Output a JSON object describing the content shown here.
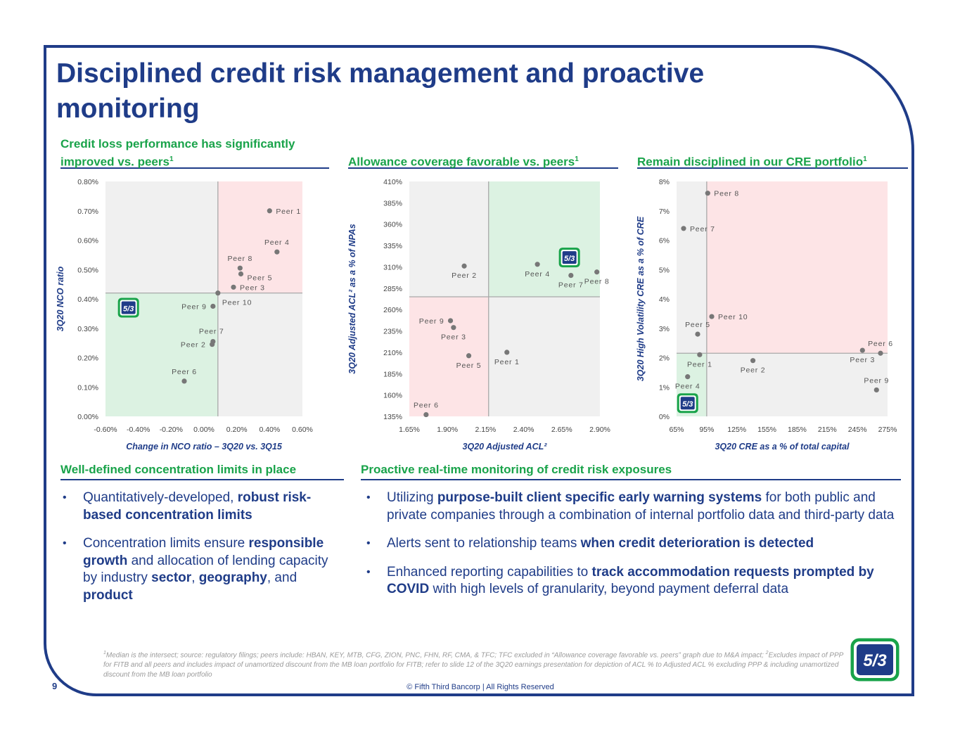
{
  "title": "Disciplined credit risk management and proactive monitoring",
  "sections": {
    "credit_loss": {
      "heading": "Credit loss performance has significantly improved vs. peers",
      "sup": "1"
    },
    "allowance": {
      "heading": "Allowance coverage favorable vs. peers",
      "sup": "1"
    },
    "cre": {
      "heading": "Remain disciplined in our CRE portfolio",
      "sup": "1"
    },
    "limits": {
      "heading": "Well-defined concentration limits in place"
    },
    "monitoring": {
      "heading": "Proactive real-time monitoring of credit risk exposures"
    }
  },
  "limits_bullets": [
    {
      "parts": [
        {
          "t": "Quantitatively-developed, "
        },
        {
          "t": "robust risk-based concentration limits",
          "b": true
        }
      ]
    },
    {
      "parts": [
        {
          "t": "Concentration limits ensure "
        },
        {
          "t": "responsible growth",
          "b": true
        },
        {
          "t": " and allocation of lending capacity by industry "
        },
        {
          "t": "sector",
          "b": true
        },
        {
          "t": ", "
        },
        {
          "t": "geography",
          "b": true
        },
        {
          "t": ", and "
        },
        {
          "t": "product",
          "b": true
        }
      ]
    }
  ],
  "monitoring_bullets": [
    {
      "parts": [
        {
          "t": "Utilizing "
        },
        {
          "t": "purpose-built client specific early warning systems",
          "b": true
        },
        {
          "t": " for both public and private companies through a combination of internal portfolio data and third-party data"
        }
      ]
    },
    {
      "parts": [
        {
          "t": "Alerts sent to relationship teams "
        },
        {
          "t": "when credit deterioration is detected",
          "b": true
        }
      ]
    },
    {
      "parts": [
        {
          "t": "Enhanced reporting capabilities to "
        },
        {
          "t": "track accommodation requests prompted by COVID",
          "b": true
        },
        {
          "t": " with high levels of granularity, beyond payment deferral data"
        }
      ]
    }
  ],
  "footnote_sup1": "1",
  "footnote_a": "Median is the intersect; source: regulatory filings; peers include: HBAN, KEY, MTB, CFG, ZION, PNC, FHN, RF, CMA, & TFC; TFC excluded in “Allowance coverage favorable vs. peers” graph due to M&A impact; ",
  "footnote_sup2": "2",
  "footnote_b": "Excludes impact of PPP for FITB and all peers and includes impact of unamortized discount from the MB loan portfolio for FITB; refer to slide 12 of the 3Q20 earnings presentation for depiction of ACL % to Adjusted ACL % excluding PPP & including unamortized discount from the MB loan portfolio",
  "page_number": "9",
  "copyright": "© Fifth Third Bancorp | All Rights Reserved",
  "logo_text": "5/3",
  "colors": {
    "navy": "#1f3c88",
    "green": "#19a34a",
    "pink_quadrant": "#fde4e6",
    "green_quadrant": "#dcf2e2",
    "gray_quadrant": "#f0f0f0",
    "point": "#777777"
  },
  "chart_data": [
    {
      "type": "scatter",
      "xlabel": "Change in NCO ratio – 3Q20 vs. 3Q15",
      "ylabel": "3Q20 NCO ratio",
      "xlim": [
        -0.6,
        0.6
      ],
      "ylim": [
        0.0,
        0.8
      ],
      "xticks": [
        -0.6,
        -0.4,
        -0.2,
        0.0,
        0.2,
        0.4,
        0.6
      ],
      "yticks": [
        0.0,
        0.1,
        0.2,
        0.3,
        0.4,
        0.5,
        0.6,
        0.7,
        0.8
      ],
      "x_tick_labels": [
        "-0.60%",
        "-0.40%",
        "-0.20%",
        "0.00%",
        "0.20%",
        "0.40%",
        "0.60%"
      ],
      "y_tick_labels": [
        "0.00%",
        "0.10%",
        "0.20%",
        "0.30%",
        "0.40%",
        "0.50%",
        "0.60%",
        "0.70%",
        "0.80%"
      ],
      "median": {
        "x": 0.085,
        "y": 0.42
      },
      "quadrants": {
        "top_right": "pink",
        "bottom_left": "green",
        "top_left": "gray",
        "bottom_right": "gray"
      },
      "points": [
        {
          "label": "Peer 1",
          "x": 0.4,
          "y": 0.7,
          "lp": "right"
        },
        {
          "label": "Peer 4",
          "x": 0.445,
          "y": 0.56,
          "lp": "above"
        },
        {
          "label": "Peer 8",
          "x": 0.22,
          "y": 0.505,
          "lp": "above"
        },
        {
          "label": "Peer 5",
          "x": 0.225,
          "y": 0.485,
          "lp": "right-below"
        },
        {
          "label": "Peer 3",
          "x": 0.18,
          "y": 0.44,
          "lp": "right"
        },
        {
          "label": "Peer 10",
          "x": 0.085,
          "y": 0.42,
          "lp": "below-right"
        },
        {
          "label": "Peer 9",
          "x": 0.055,
          "y": 0.375,
          "lp": "left"
        },
        {
          "label": "Peer 7",
          "x": 0.055,
          "y": 0.255,
          "lp": "above-right"
        },
        {
          "label": "Peer 2",
          "x": 0.05,
          "y": 0.245,
          "lp": "left"
        },
        {
          "label": "Peer 6",
          "x": -0.12,
          "y": 0.12,
          "lp": "above"
        }
      ],
      "fitb": {
        "x": -0.46,
        "y": 0.37
      }
    },
    {
      "type": "scatter",
      "xlabel": "3Q20 Adjusted ACL²",
      "ylabel": "3Q20 Adjusted ACL² as a % of NPAs",
      "xlim": [
        1.65,
        2.9
      ],
      "ylim": [
        135,
        410
      ],
      "xticks": [
        1.65,
        1.9,
        2.15,
        2.4,
        2.65,
        2.9
      ],
      "yticks": [
        135,
        160,
        185,
        210,
        235,
        260,
        285,
        310,
        335,
        360,
        385,
        410
      ],
      "x_tick_labels": [
        "1.65%",
        "1.90%",
        "2.15%",
        "2.40%",
        "2.65%",
        "2.90%"
      ],
      "y_tick_labels": [
        "135%",
        "160%",
        "185%",
        "210%",
        "235%",
        "260%",
        "285%",
        "310%",
        "335%",
        "360%",
        "385%",
        "410%"
      ],
      "median": {
        "x": 2.17,
        "y": 275
      },
      "quadrants": {
        "top_right": "green",
        "bottom_left": "pink",
        "top_left": "gray",
        "bottom_right": "gray"
      },
      "points": [
        {
          "label": "Peer 2",
          "x": 2.01,
          "y": 311,
          "lp": "below"
        },
        {
          "label": "Peer 4",
          "x": 2.49,
          "y": 313,
          "lp": "below"
        },
        {
          "label": "Peer 7",
          "x": 2.71,
          "y": 300,
          "lp": "below"
        },
        {
          "label": "Peer 8",
          "x": 2.88,
          "y": 304,
          "lp": "below"
        },
        {
          "label": "Peer 9",
          "x": 1.92,
          "y": 247,
          "lp": "left"
        },
        {
          "label": "Peer 3",
          "x": 1.94,
          "y": 239,
          "lp": "below"
        },
        {
          "label": "Peer 5",
          "x": 2.04,
          "y": 206,
          "lp": "below"
        },
        {
          "label": "Peer 1",
          "x": 2.29,
          "y": 210,
          "lp": "below"
        },
        {
          "label": "Peer 6",
          "x": 1.76,
          "y": 137,
          "lp": "above"
        }
      ],
      "fitb": {
        "x": 2.7,
        "y": 321
      }
    },
    {
      "type": "scatter",
      "xlabel": "3Q20 CRE as a % of total capital",
      "ylabel": "3Q20 High Volatility CRE as a % of CRE",
      "xlim": [
        65,
        275
      ],
      "ylim": [
        0,
        8
      ],
      "xticks": [
        65,
        95,
        125,
        155,
        185,
        215,
        245,
        275
      ],
      "yticks": [
        0,
        1,
        2,
        3,
        4,
        5,
        6,
        7,
        8
      ],
      "x_tick_labels": [
        "65%",
        "95%",
        "125%",
        "155%",
        "185%",
        "215%",
        "245%",
        "275%"
      ],
      "y_tick_labels": [
        "0%",
        "1%",
        "2%",
        "3%",
        "4%",
        "5%",
        "6%",
        "7%",
        "8%"
      ],
      "median": {
        "x": 95,
        "y": 2.15
      },
      "quadrants": {
        "top_right": "pink",
        "bottom_left": "green",
        "top_left": "gray",
        "bottom_right": "gray"
      },
      "points": [
        {
          "label": "Peer 8",
          "x": 96,
          "y": 7.6,
          "lp": "right"
        },
        {
          "label": "Peer 7",
          "x": 72,
          "y": 6.4,
          "lp": "right"
        },
        {
          "label": "Peer 10",
          "x": 100,
          "y": 3.4,
          "lp": "right"
        },
        {
          "label": "Peer 5",
          "x": 86,
          "y": 2.8,
          "lp": "above"
        },
        {
          "label": "Peer 1",
          "x": 88,
          "y": 2.1,
          "lp": "below"
        },
        {
          "label": "Peer 4",
          "x": 76,
          "y": 1.35,
          "lp": "below"
        },
        {
          "label": "Peer 2",
          "x": 141,
          "y": 1.9,
          "lp": "below"
        },
        {
          "label": "Peer 3",
          "x": 250,
          "y": 2.25,
          "lp": "below"
        },
        {
          "label": "Peer 6",
          "x": 268,
          "y": 2.15,
          "lp": "above"
        },
        {
          "label": "Peer 9",
          "x": 264,
          "y": 0.9,
          "lp": "above"
        }
      ],
      "fitb": {
        "x": 76,
        "y": 0.45
      }
    }
  ]
}
